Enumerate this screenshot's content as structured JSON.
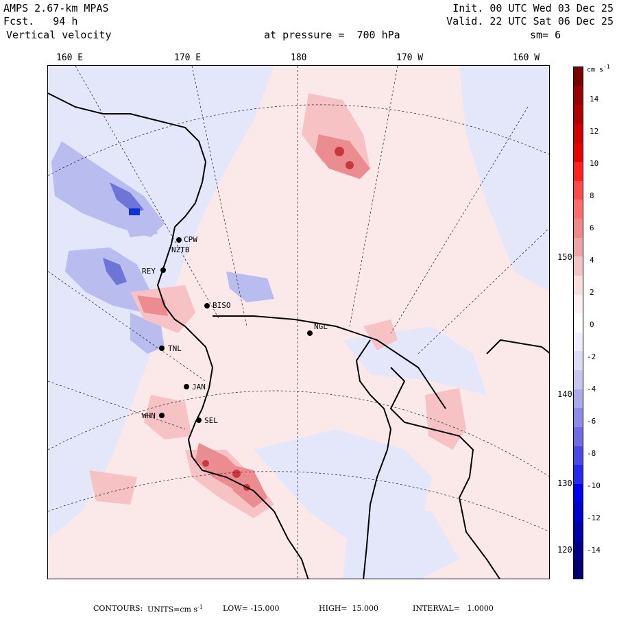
{
  "header": {
    "model": "AMPS 2.67-km MPAS",
    "forecast": "Fcst.   94 h",
    "field": "Vertical velocity",
    "init": "Init. 00 UTC Wed 03 Dec 25",
    "valid": "Valid. 22 UTC Sat 06 Dec 25",
    "pressure": "at pressure =  700 hPa",
    "smoothing": "sm= 6"
  },
  "longitude_labels": [
    "160 E",
    "170 E",
    "180",
    "170 W",
    "160 W"
  ],
  "latitude_labels": [
    "150 W",
    "140 W",
    "130 W",
    "120 W"
  ],
  "stations": [
    {
      "id": "CPW"
    },
    {
      "id": "NZTB"
    },
    {
      "id": "REY"
    },
    {
      "id": "BISO"
    },
    {
      "id": "NGL"
    },
    {
      "id": "TNL"
    },
    {
      "id": "JAN"
    },
    {
      "id": "WHN"
    },
    {
      "id": "SEL"
    }
  ],
  "colorbar": {
    "units": "cm s",
    "units_exp": "-1",
    "ticks": [
      "14",
      "12",
      "10",
      "8",
      "6",
      "4",
      "2",
      "0",
      "-2",
      "-4",
      "-6",
      "-8",
      "-10",
      "-12",
      "-14"
    ],
    "colors": [
      "#7a0000",
      "#9a0000",
      "#b00000",
      "#d00000",
      "#e80000",
      "#ff2020",
      "#ff4848",
      "#ff6c6c",
      "#f08a8a",
      "#eca4a4",
      "#f3c4c4",
      "#f9dede",
      "#fdf0f0",
      "#ffffff",
      "#eeeefc",
      "#dcdcf6",
      "#c6c6f0",
      "#aaaaea",
      "#8c8ce4",
      "#6e6ee0",
      "#4a4ae8",
      "#2828f0",
      "#0000ee",
      "#0000cc",
      "#0000a8",
      "#000088",
      "#00006e"
    ]
  },
  "footer": {
    "contours_label": "CONTOURS:",
    "units_label": "UNITS=cm s",
    "units_exp": "-1",
    "low": "LOW= -15.000",
    "high": "HIGH=  15.000",
    "interval": "INTERVAL=   1.0000"
  }
}
